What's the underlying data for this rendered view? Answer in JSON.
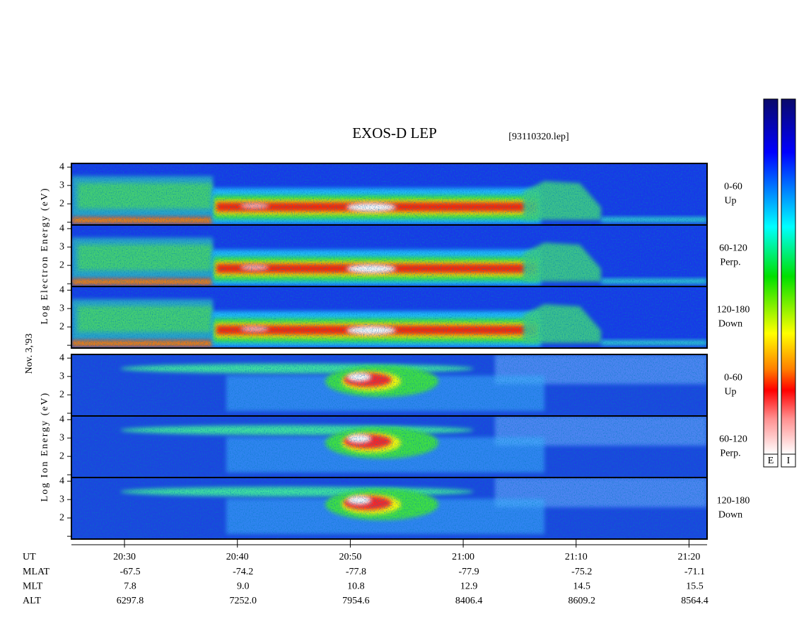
{
  "chart_data": {
    "type": "spectrogram",
    "title": "EXOS-D LEP",
    "subtitle": "[93110320.lep]",
    "date_label": "Nov. 3,'93",
    "groups": [
      {
        "label": "Log Electron Energy (eV)",
        "panels": [
          [
            "0-60",
            "Up"
          ],
          [
            "60-120",
            "Perp."
          ],
          [
            "120-180",
            "Down"
          ]
        ]
      },
      {
        "label": "Log Ion Energy (eV)",
        "panels": [
          [
            "0-60",
            "Up"
          ],
          [
            "60-120",
            "Perp."
          ],
          [
            "120-180",
            "Down"
          ]
        ]
      }
    ],
    "ylim": [
      0.85,
      4.2
    ],
    "yticks": [
      {
        "value": 1,
        "label": null
      },
      2,
      3,
      4
    ],
    "x_label": "UT",
    "xlim": [
      1225.3,
      1281.6
    ],
    "xticks": [
      {
        "value": 1230,
        "label": "20:30"
      },
      {
        "value": 1240,
        "label": "20:40"
      },
      {
        "value": 1250,
        "label": "20:50"
      },
      {
        "value": 1260,
        "label": "21:00"
      },
      {
        "value": 1270,
        "label": "21:10"
      },
      {
        "value": 1280,
        "label": "21:20"
      }
    ],
    "ephemeris": [
      {
        "name": "MLAT",
        "values": [
          "-67.5",
          "-74.2",
          "-77.8",
          "-77.9",
          "-75.2",
          "-71.1"
        ]
      },
      {
        "name": "MLT",
        "values": [
          "7.8",
          "9.0",
          "10.8",
          "12.9",
          "14.5",
          "15.5"
        ]
      },
      {
        "name": "ALT",
        "values": [
          "6297.8",
          "7252.0",
          "7954.6",
          "8406.4",
          "8609.2",
          "8564.4"
        ]
      }
    ],
    "colorbar_labels": [
      "E",
      "I"
    ]
  }
}
